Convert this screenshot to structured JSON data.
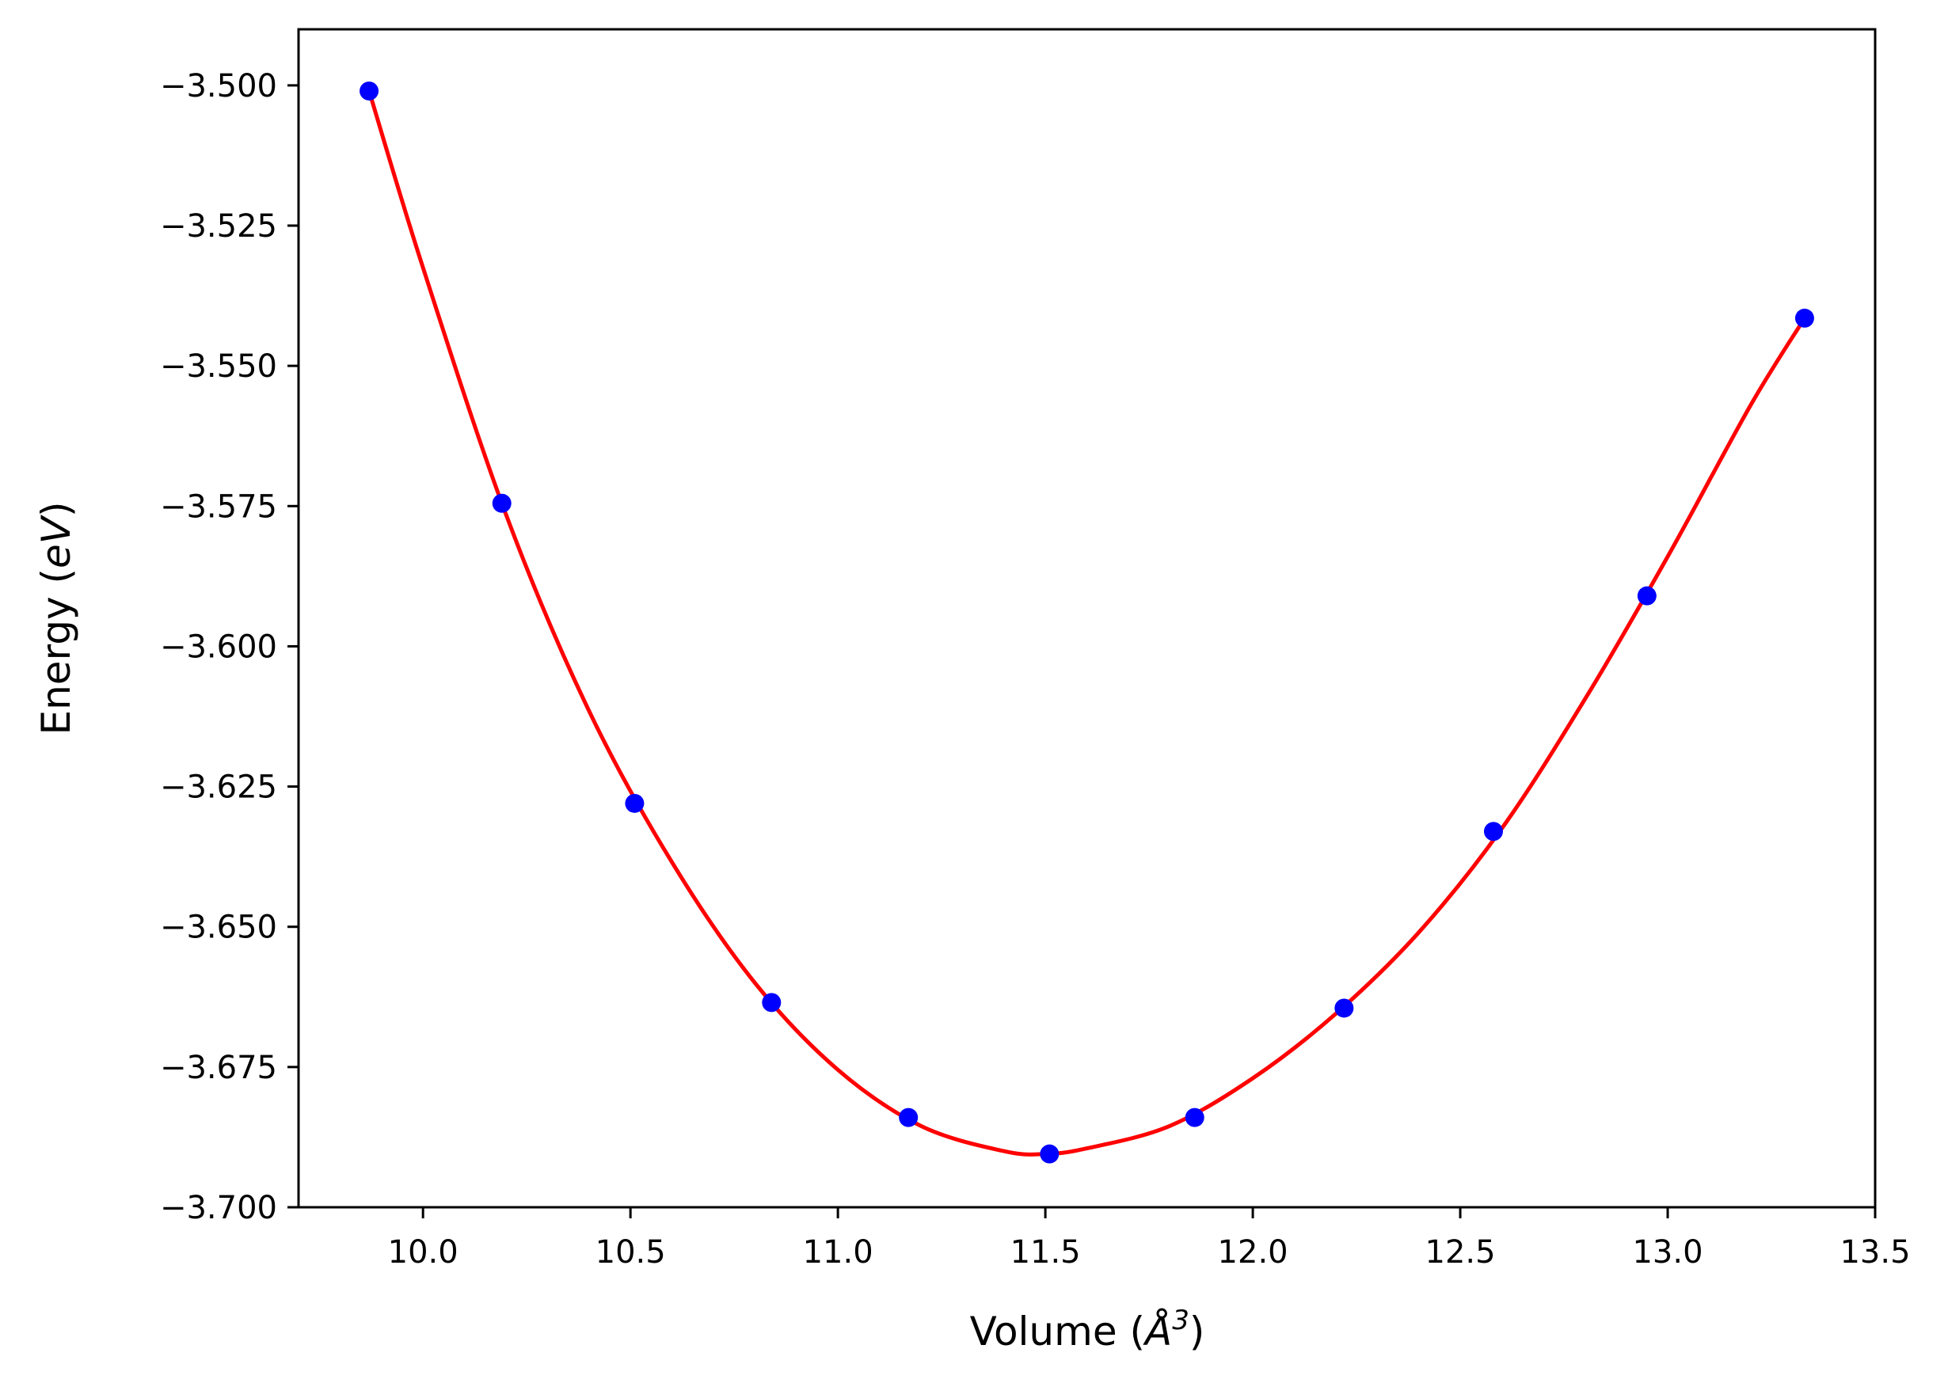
{
  "chart_data": {
    "type": "scatter",
    "title": "",
    "xlabel_text": "Volume (",
    "xlabel_symbol": "Å",
    "xlabel_exp": "3",
    "xlabel_close": ")",
    "ylabel_text": "Energy (",
    "ylabel_unit": "eV",
    "ylabel_close": ")",
    "xlim": [
      9.7,
      13.5
    ],
    "ylim": [
      -3.7,
      -3.49
    ],
    "xticks": [
      10.0,
      10.5,
      11.0,
      11.5,
      12.0,
      12.5,
      13.0,
      13.5
    ],
    "xtick_labels": [
      "10.0",
      "10.5",
      "11.0",
      "11.5",
      "12.0",
      "12.5",
      "13.0",
      "13.5"
    ],
    "yticks": [
      -3.5,
      -3.525,
      -3.55,
      -3.575,
      -3.6,
      -3.625,
      -3.65,
      -3.675,
      -3.7
    ],
    "ytick_labels": [
      "−3.500",
      "−3.525",
      "−3.550",
      "−3.575",
      "−3.600",
      "−3.625",
      "−3.650",
      "−3.675",
      "−3.700"
    ],
    "grid": false,
    "series": [
      {
        "kind": "points",
        "color": "#0000ff",
        "x": [
          9.87,
          10.19,
          10.51,
          10.84,
          11.17,
          11.51,
          11.86,
          12.22,
          12.58,
          12.95,
          13.33
        ],
        "y": [
          -3.501,
          -3.5745,
          -3.628,
          -3.6635,
          -3.684,
          -3.6905,
          -3.684,
          -3.6645,
          -3.633,
          -3.591,
          -3.5415
        ]
      },
      {
        "kind": "fit-curve",
        "color": "#ff0000",
        "x": [
          9.87,
          10.0,
          10.2,
          10.4,
          10.6,
          10.8,
          11.0,
          11.2,
          11.4,
          11.5,
          11.6,
          11.8,
          12.0,
          12.2,
          12.4,
          12.6,
          12.8,
          13.0,
          13.2,
          13.33
        ],
        "y": [
          -3.501,
          -3.5325,
          -3.5765,
          -3.6115,
          -3.6385,
          -3.66,
          -3.6755,
          -3.6855,
          -3.69,
          -3.6905,
          -3.6895,
          -3.6855,
          -3.677,
          -3.6655,
          -3.651,
          -3.6325,
          -3.6095,
          -3.584,
          -3.557,
          -3.5415
        ]
      }
    ]
  }
}
